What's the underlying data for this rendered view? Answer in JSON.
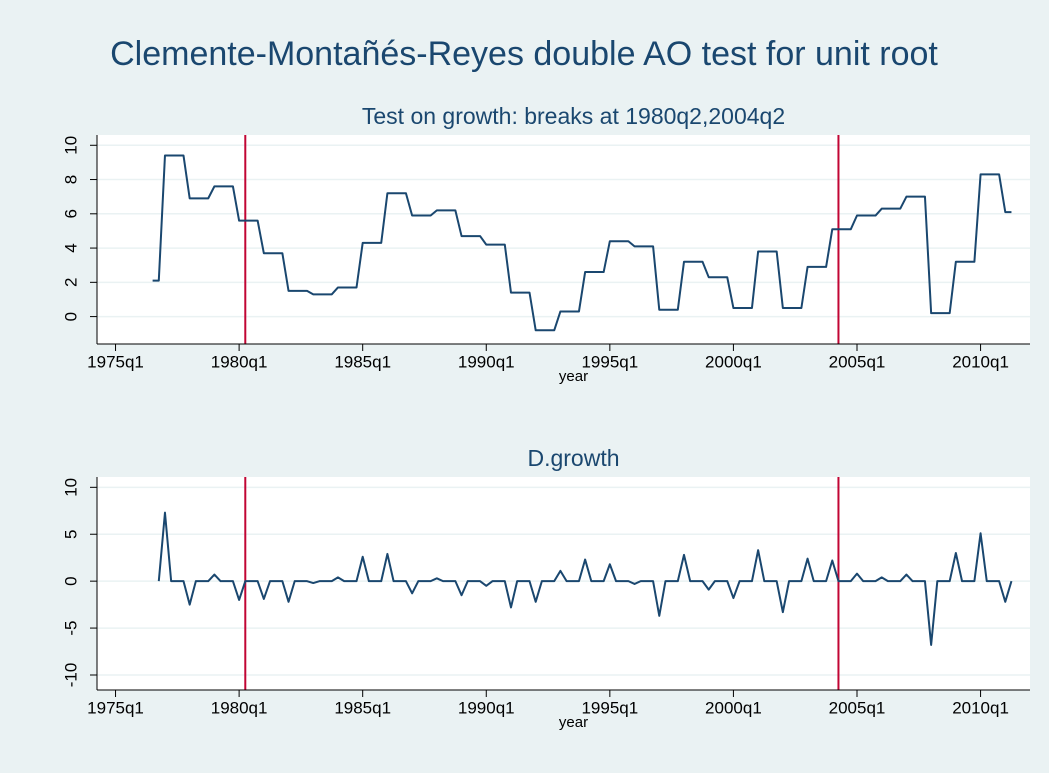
{
  "title": "Clemente-Montañés-Reyes double AO test for unit root",
  "chart_data": [
    {
      "type": "line",
      "title": "Test on growth: breaks at 1980q2,2004q2",
      "xlabel": "year",
      "color": "#1a476f",
      "break_color": "#c10534",
      "grid": true,
      "xlim": [
        "1974q2",
        "2012q1"
      ],
      "xticks": [
        "1975q1",
        "1980q1",
        "1985q1",
        "1990q1",
        "1995q1",
        "2000q1",
        "2005q1",
        "2010q1"
      ],
      "ylim": [
        -1.6,
        10.6
      ],
      "yticks": [
        0,
        2,
        4,
        6,
        8,
        10
      ],
      "breaks": [
        "1980q2",
        "2004q2"
      ],
      "x": [
        "1976q3",
        "1976q4",
        "1977q1",
        "1977q2",
        "1977q3",
        "1977q4",
        "1978q1",
        "1978q2",
        "1978q3",
        "1978q4",
        "1979q1",
        "1979q2",
        "1979q3",
        "1979q4",
        "1980q1",
        "1980q2",
        "1980q3",
        "1980q4",
        "1981q1",
        "1981q2",
        "1981q3",
        "1981q4",
        "1982q1",
        "1982q2",
        "1982q3",
        "1982q4",
        "1983q1",
        "1983q2",
        "1983q3",
        "1983q4",
        "1984q1",
        "1984q2",
        "1984q3",
        "1984q4",
        "1985q1",
        "1985q2",
        "1985q3",
        "1985q4",
        "1986q1",
        "1986q2",
        "1986q3",
        "1986q4",
        "1987q1",
        "1987q2",
        "1987q3",
        "1987q4",
        "1988q1",
        "1988q2",
        "1988q3",
        "1988q4",
        "1989q1",
        "1989q2",
        "1989q3",
        "1989q4",
        "1990q1",
        "1990q2",
        "1990q3",
        "1990q4",
        "1991q1",
        "1991q2",
        "1991q3",
        "1991q4",
        "1992q1",
        "1992q2",
        "1992q3",
        "1992q4",
        "1993q1",
        "1993q2",
        "1993q3",
        "1993q4",
        "1994q1",
        "1994q2",
        "1994q3",
        "1994q4",
        "1995q1",
        "1995q2",
        "1995q3",
        "1995q4",
        "1996q1",
        "1996q2",
        "1996q3",
        "1996q4",
        "1997q1",
        "1997q2",
        "1997q3",
        "1997q4",
        "1998q1",
        "1998q2",
        "1998q3",
        "1998q4",
        "1999q1",
        "1999q2",
        "1999q3",
        "1999q4",
        "2000q1",
        "2000q2",
        "2000q3",
        "2000q4",
        "2001q1",
        "2001q2",
        "2001q3",
        "2001q4",
        "2002q1",
        "2002q2",
        "2002q3",
        "2002q4",
        "2003q1",
        "2003q2",
        "2003q3",
        "2003q4",
        "2004q1",
        "2004q2",
        "2004q3",
        "2004q4",
        "2005q1",
        "2005q2",
        "2005q3",
        "2005q4",
        "2006q1",
        "2006q2",
        "2006q3",
        "2006q4",
        "2007q1",
        "2007q2",
        "2007q3",
        "2007q4",
        "2008q1",
        "2008q2",
        "2008q3",
        "2008q4",
        "2009q1",
        "2009q2",
        "2009q3",
        "2009q4",
        "2010q1",
        "2010q2",
        "2010q3",
        "2010q4",
        "2011q1",
        "2011q2"
      ],
      "values": [
        2.1,
        2.1,
        9.4,
        9.4,
        9.4,
        9.4,
        6.9,
        6.9,
        6.9,
        6.9,
        7.6,
        7.6,
        7.6,
        7.6,
        5.6,
        5.6,
        5.6,
        5.6,
        3.7,
        3.7,
        3.7,
        3.7,
        1.5,
        1.5,
        1.5,
        1.5,
        1.3,
        1.3,
        1.3,
        1.3,
        1.7,
        1.7,
        1.7,
        1.7,
        4.3,
        4.3,
        4.3,
        4.3,
        7.2,
        7.2,
        7.2,
        7.2,
        5.9,
        5.9,
        5.9,
        5.9,
        6.2,
        6.2,
        6.2,
        6.2,
        4.7,
        4.7,
        4.7,
        4.7,
        4.2,
        4.2,
        4.2,
        4.2,
        1.4,
        1.4,
        1.4,
        1.4,
        -0.8,
        -0.8,
        -0.8,
        -0.8,
        0.3,
        0.3,
        0.3,
        0.3,
        2.6,
        2.6,
        2.6,
        2.6,
        4.4,
        4.4,
        4.4,
        4.4,
        4.1,
        4.1,
        4.1,
        4.1,
        0.4,
        0.4,
        0.4,
        0.4,
        3.2,
        3.2,
        3.2,
        3.2,
        2.3,
        2.3,
        2.3,
        2.3,
        0.5,
        0.5,
        0.5,
        0.5,
        3.8,
        3.8,
        3.8,
        3.8,
        0.5,
        0.5,
        0.5,
        0.5,
        2.9,
        2.9,
        2.9,
        2.9,
        5.1,
        5.1,
        5.1,
        5.1,
        5.9,
        5.9,
        5.9,
        5.9,
        6.3,
        6.3,
        6.3,
        6.3,
        7.0,
        7.0,
        7.0,
        7.0,
        0.2,
        0.2,
        0.2,
        0.2,
        3.2,
        3.2,
        3.2,
        3.2,
        8.3,
        8.3,
        8.3,
        8.3,
        6.1,
        6.1
      ]
    },
    {
      "type": "line",
      "title": "D.growth",
      "xlabel": "year",
      "color": "#1a476f",
      "break_color": "#c10534",
      "grid": true,
      "xlim": [
        "1974q2",
        "2012q1"
      ],
      "xticks": [
        "1975q1",
        "1980q1",
        "1985q1",
        "1990q1",
        "1995q1",
        "2000q1",
        "2005q1",
        "2010q1"
      ],
      "ylim": [
        -11.6,
        11.1
      ],
      "yticks": [
        -10,
        -5,
        0,
        5,
        10
      ],
      "breaks": [
        "1980q2",
        "2004q2"
      ],
      "x": [
        "1976q3",
        "1976q4",
        "1977q1",
        "1977q2",
        "1977q3",
        "1977q4",
        "1978q1",
        "1978q2",
        "1978q3",
        "1978q4",
        "1979q1",
        "1979q2",
        "1979q3",
        "1979q4",
        "1980q1",
        "1980q2",
        "1980q3",
        "1980q4",
        "1981q1",
        "1981q2",
        "1981q3",
        "1981q4",
        "1982q1",
        "1982q2",
        "1982q3",
        "1982q4",
        "1983q1",
        "1983q2",
        "1983q3",
        "1983q4",
        "1984q1",
        "1984q2",
        "1984q3",
        "1984q4",
        "1985q1",
        "1985q2",
        "1985q3",
        "1985q4",
        "1986q1",
        "1986q2",
        "1986q3",
        "1986q4",
        "1987q1",
        "1987q2",
        "1987q3",
        "1987q4",
        "1988q1",
        "1988q2",
        "1988q3",
        "1988q4",
        "1989q1",
        "1989q2",
        "1989q3",
        "1989q4",
        "1990q1",
        "1990q2",
        "1990q3",
        "1990q4",
        "1991q1",
        "1991q2",
        "1991q3",
        "1991q4",
        "1992q1",
        "1992q2",
        "1992q3",
        "1992q4",
        "1993q1",
        "1993q2",
        "1993q3",
        "1993q4",
        "1994q1",
        "1994q2",
        "1994q3",
        "1994q4",
        "1995q1",
        "1995q2",
        "1995q3",
        "1995q4",
        "1996q1",
        "1996q2",
        "1996q3",
        "1996q4",
        "1997q1",
        "1997q2",
        "1997q3",
        "1997q4",
        "1998q1",
        "1998q2",
        "1998q3",
        "1998q4",
        "1999q1",
        "1999q2",
        "1999q3",
        "1999q4",
        "2000q1",
        "2000q2",
        "2000q3",
        "2000q4",
        "2001q1",
        "2001q2",
        "2001q3",
        "2001q4",
        "2002q1",
        "2002q2",
        "2002q3",
        "2002q4",
        "2003q1",
        "2003q2",
        "2003q3",
        "2003q4",
        "2004q1",
        "2004q2",
        "2004q3",
        "2004q4",
        "2005q1",
        "2005q2",
        "2005q3",
        "2005q4",
        "2006q1",
        "2006q2",
        "2006q3",
        "2006q4",
        "2007q1",
        "2007q2",
        "2007q3",
        "2007q4",
        "2008q1",
        "2008q2",
        "2008q3",
        "2008q4",
        "2009q1",
        "2009q2",
        "2009q3",
        "2009q4",
        "2010q1",
        "2010q2",
        "2010q3",
        "2010q4",
        "2011q1",
        "2011q2"
      ],
      "values": [
        null,
        0,
        7.3,
        0,
        0,
        0,
        -2.5,
        0,
        0,
        0,
        0.7,
        0,
        0,
        0,
        -2.0,
        0,
        0,
        0,
        -1.9,
        0,
        0,
        0,
        -2.2,
        0,
        0,
        0,
        -0.2,
        0,
        0,
        0,
        0.4,
        0,
        0,
        0,
        2.6,
        0,
        0,
        0,
        2.9,
        0,
        0,
        0,
        -1.3,
        0,
        0,
        0,
        0.3,
        0,
        0,
        0,
        -1.5,
        0,
        0,
        0,
        -0.5,
        0,
        0,
        0,
        -2.8,
        0,
        0,
        0,
        -2.2,
        0,
        0,
        0,
        1.1,
        0,
        0,
        0,
        2.3,
        0,
        0,
        0,
        1.8,
        0,
        0,
        0,
        -0.3,
        0,
        0,
        0,
        -3.7,
        0,
        0,
        0,
        2.8,
        0,
        0,
        0,
        -0.9,
        0,
        0,
        0,
        -1.8,
        0,
        0,
        0,
        3.3,
        0,
        0,
        0,
        -3.3,
        0,
        0,
        0,
        2.4,
        0,
        0,
        0,
        2.2,
        0,
        0,
        0,
        0.8,
        0,
        0,
        0,
        0.4,
        0,
        0,
        0,
        0.7,
        0,
        0,
        0,
        -6.8,
        0,
        0,
        0,
        3.0,
        0,
        0,
        0,
        5.1,
        0,
        0,
        0,
        -2.2,
        0
      ]
    }
  ]
}
